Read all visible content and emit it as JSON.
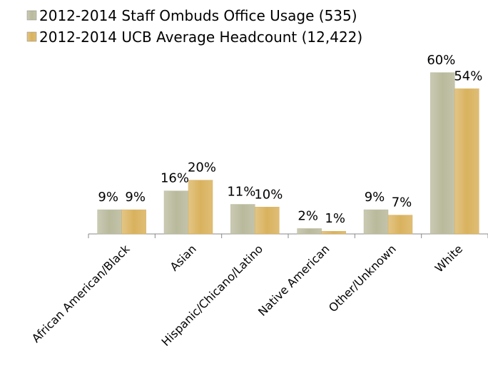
{
  "chart_data": {
    "type": "bar",
    "categories": [
      "African American/Black",
      "Asian",
      "Hispanic/Chicano/Latino",
      "Native American",
      "Other/Unknown",
      "White"
    ],
    "series": [
      {
        "name": "2012-2014 Staff Ombuds Office Usage (535)",
        "color": "#b9b99c",
        "values": [
          9,
          16,
          11,
          2,
          9,
          60
        ],
        "value_labels": [
          "9%",
          "16%",
          "11%",
          "2%",
          "9%",
          "60%"
        ]
      },
      {
        "name": "2012-2014 UCB Average Headcount (12,422)",
        "color": "#d9b25e",
        "values": [
          9,
          20,
          10,
          1,
          7,
          54
        ],
        "value_labels": [
          "9%",
          "20%",
          "10%",
          "1%",
          "7%",
          "54%"
        ]
      }
    ]
  }
}
